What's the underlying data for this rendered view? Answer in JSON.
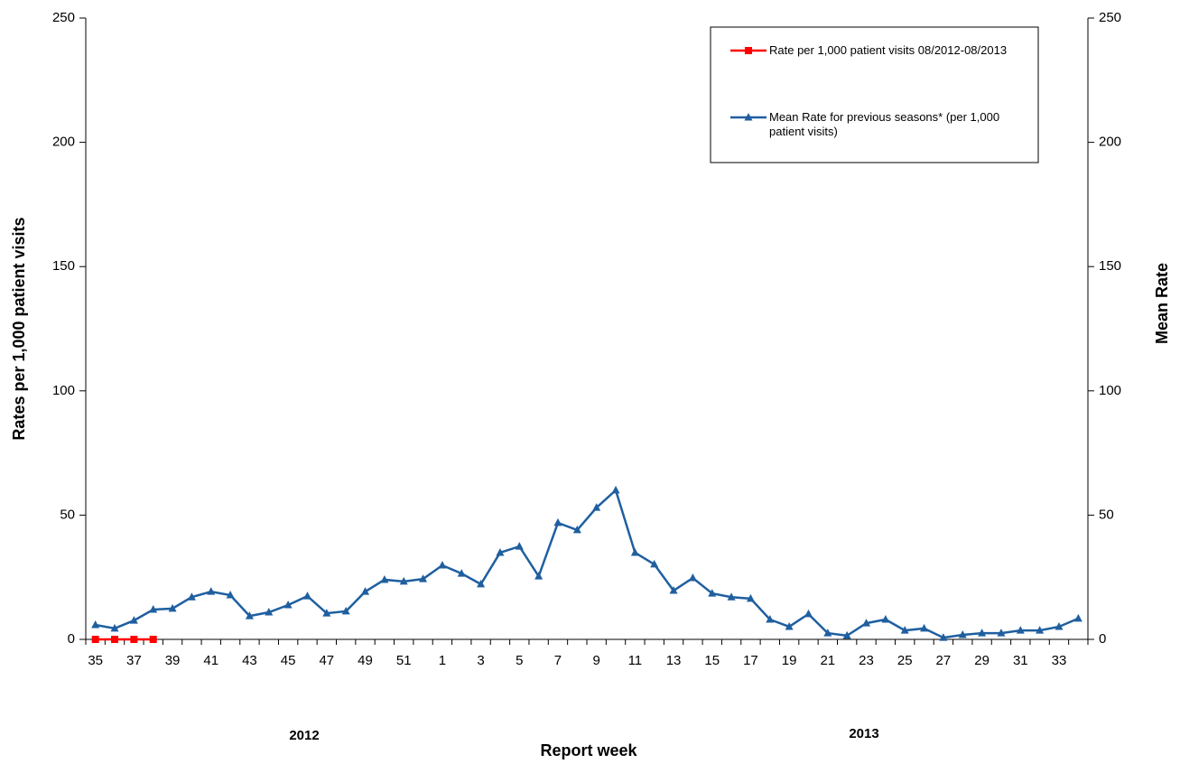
{
  "chart_data": {
    "type": "line",
    "x_label": "Report week",
    "y_label": "Rates per 1,000 patient visits",
    "y2_label": "Mean Rate",
    "group_labels": [
      "2012",
      "2013"
    ],
    "categories": [
      "35",
      null,
      "37",
      null,
      "39",
      null,
      "41",
      null,
      "43",
      null,
      "45",
      null,
      "47",
      null,
      "49",
      null,
      "51",
      null,
      "1",
      null,
      "3",
      null,
      "5",
      null,
      "7",
      null,
      "9",
      null,
      "11",
      null,
      "13",
      null,
      "15",
      null,
      "17",
      null,
      "19",
      null,
      "21",
      null,
      "23",
      null,
      "25",
      null,
      "27",
      null,
      "29",
      null,
      "31",
      null,
      "33",
      null
    ],
    "series": [
      {
        "name": "Rate per 1,000 patient visits 08/2012-08/2013",
        "color": "#ff0000",
        "marker": "square",
        "values": [
          0,
          0,
          0,
          0,
          null,
          null,
          null,
          null,
          null,
          null,
          null,
          null,
          null,
          null,
          null,
          null,
          null,
          null,
          null,
          null,
          null,
          null,
          null,
          null,
          null,
          null,
          null,
          null,
          null,
          null,
          null,
          null,
          null,
          null,
          null,
          null,
          null,
          null,
          null,
          null,
          null,
          null,
          null,
          null,
          null,
          null,
          null,
          null,
          null,
          null,
          null,
          null
        ]
      },
      {
        "name": "Mean Rate  for previous seasons* (per 1,000 patient visits)",
        "color": "#1f5fa0",
        "marker": "triangle",
        "axis": "y2",
        "values": [
          5.8,
          4.4,
          7.6,
          12,
          12.4,
          17,
          19.2,
          17.8,
          9.4,
          10.9,
          13.8,
          17.4,
          10.5,
          11.3,
          19.2,
          24,
          23.3,
          24.3,
          29.8,
          26.5,
          22.2,
          34.9,
          37.4,
          25.4,
          46.9,
          44,
          53,
          60,
          34.9,
          30.2,
          19.6,
          24.7,
          18.5,
          17,
          16.4,
          8,
          5.1,
          10.2,
          2.5,
          1.5,
          6.5,
          8,
          3.6,
          4.4,
          0.7,
          1.8,
          2.5,
          2.5,
          3.6,
          3.6,
          5.1,
          8.4
        ]
      }
    ],
    "ylim": [
      0,
      250
    ],
    "yticks": [
      0,
      50,
      100,
      150,
      200,
      250
    ],
    "y2lim": [
      0,
      250
    ],
    "y2ticks": [
      0,
      50,
      100,
      150,
      200,
      250
    ],
    "grid": false,
    "legend": "top-right"
  }
}
